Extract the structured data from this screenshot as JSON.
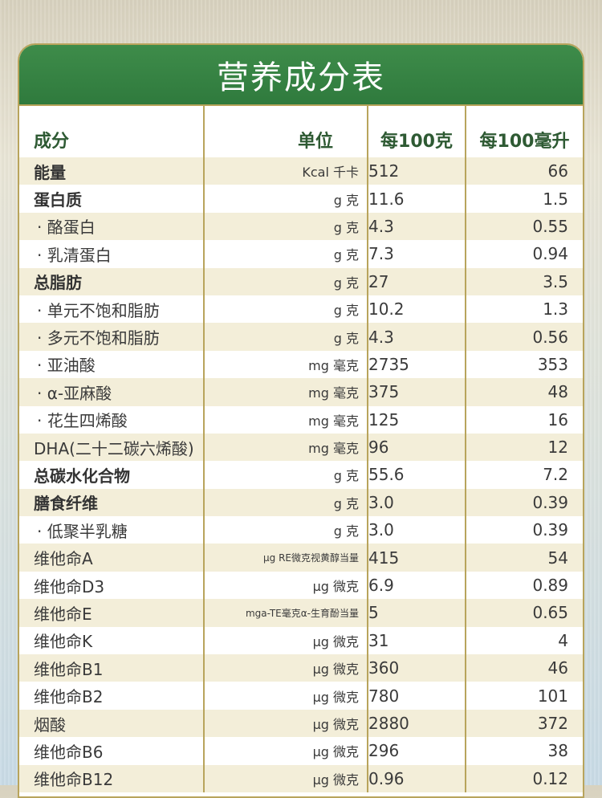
{
  "title": "营养成分表",
  "headers": {
    "name": "成分",
    "unit": "单位",
    "per100g": "每100克",
    "per100ml": "每100毫升"
  },
  "rows": [
    {
      "name": "能量",
      "unit": "Kcal 千卡",
      "per100g": "512",
      "per100ml": "66"
    },
    {
      "name": "蛋白质",
      "unit": "g 克",
      "per100g": "11.6",
      "per100ml": "1.5"
    },
    {
      "name": "· 酪蛋白",
      "unit": "g 克",
      "per100g": "4.3",
      "per100ml": "0.55"
    },
    {
      "name": "· 乳清蛋白",
      "unit": "g 克",
      "per100g": "7.3",
      "per100ml": "0.94"
    },
    {
      "name": "总脂肪",
      "unit": "g 克",
      "per100g": "27",
      "per100ml": "3.5"
    },
    {
      "name": "· 单元不饱和脂肪",
      "unit": "g 克",
      "per100g": "10.2",
      "per100ml": "1.3"
    },
    {
      "name": "· 多元不饱和脂肪",
      "unit": "g 克",
      "per100g": "4.3",
      "per100ml": "0.56"
    },
    {
      "name": "· 亚油酸",
      "unit": "mg 毫克",
      "per100g": "2735",
      "per100ml": "353"
    },
    {
      "name": "· α-亚麻酸",
      "unit": "mg 毫克",
      "per100g": "375",
      "per100ml": "48"
    },
    {
      "name": "· 花生四烯酸",
      "unit": "mg 毫克",
      "per100g": "125",
      "per100ml": "16"
    },
    {
      "name": "DHA(二十二碳六烯酸)",
      "unit": "mg 毫克",
      "per100g": "96",
      "per100ml": "12"
    },
    {
      "name": "总碳水化合物",
      "unit": "g 克",
      "per100g": "55.6",
      "per100ml": "7.2"
    },
    {
      "name": "膳食纤维",
      "unit": "g 克",
      "per100g": "3.0",
      "per100ml": "0.39"
    },
    {
      "name": "· 低聚半乳糖",
      "unit": "g 克",
      "per100g": "3.0",
      "per100ml": "0.39"
    },
    {
      "name": "维他命A",
      "unit": "μg RE微克视黄醇当量",
      "per100g": "415",
      "per100ml": "54"
    },
    {
      "name": "维他命D3",
      "unit": "μg 微克",
      "per100g": "6.9",
      "per100ml": "0.89"
    },
    {
      "name": "维他命E",
      "unit": "mga-TE毫克α-生育酚当量",
      "per100g": "5",
      "per100ml": "0.65"
    },
    {
      "name": "维他命K",
      "unit": "μg 微克",
      "per100g": "31",
      "per100ml": "4"
    },
    {
      "name": "维他命B1",
      "unit": "μg 微克",
      "per100g": "360",
      "per100ml": "46"
    },
    {
      "name": "维他命B2",
      "unit": "μg 微克",
      "per100g": "780",
      "per100ml": "101"
    },
    {
      "name": "烟酸",
      "unit": "μg 微克",
      "per100g": "2880",
      "per100ml": "372"
    },
    {
      "name": "维他命B6",
      "unit": "μg 微克",
      "per100g": "296",
      "per100ml": "38"
    },
    {
      "name": "维他命B12",
      "unit": "μg 微克",
      "per100g": "0.96",
      "per100ml": "0.12"
    }
  ],
  "colors": {
    "banner": "#2f7a3d",
    "border": "#b8a45c",
    "stripe": "#f3eed9",
    "header_text": "#2e5a33"
  }
}
